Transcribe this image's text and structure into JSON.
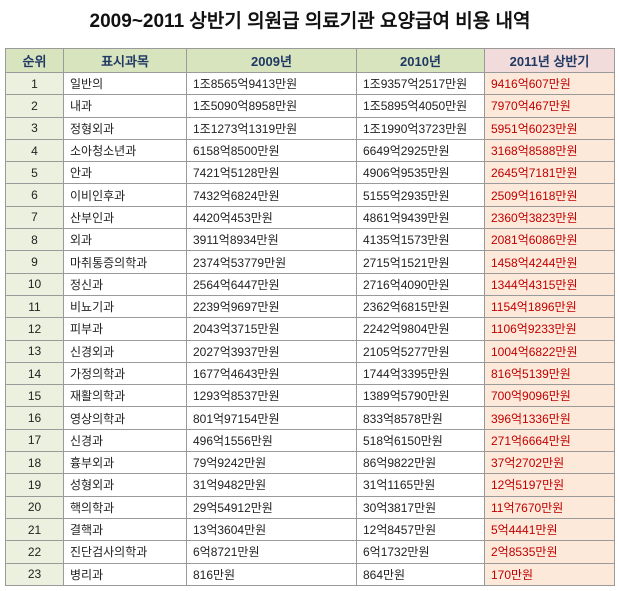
{
  "title": "2009~2011 상반기 의원급 의료기관 요양급여 비용 내역",
  "table": {
    "headers": [
      "순위",
      "표시과목",
      "2009년",
      "2010년",
      "2011년 상반기"
    ],
    "rows": [
      [
        "1",
        "일반의",
        "1조8565억9413만원",
        "1조9357억2517만원",
        "9416억607만원"
      ],
      [
        "2",
        "내과",
        "1조5090억8958만원",
        "1조5895억4050만원",
        "7970억467만원"
      ],
      [
        "3",
        "정형외과",
        "1조1273억1319만원",
        "1조1990억3723만원",
        "5951억6023만원"
      ],
      [
        "4",
        "소아청소년과",
        "6158억8500만원",
        "6649억2925만원",
        "3168억8588만원"
      ],
      [
        "5",
        "안과",
        "7421억5128만원",
        "4906억9535만원",
        "2645억7181만원"
      ],
      [
        "6",
        "이비인후과",
        "7432억6824만원",
        "5155억2935만원",
        "2509억1618만원"
      ],
      [
        "7",
        "산부인과",
        "4420억453만원",
        "4861억9439만원",
        "2360억3823만원"
      ],
      [
        "8",
        "외과",
        "3911억8934만원",
        "4135억1573만원",
        "2081억6086만원"
      ],
      [
        "9",
        "마취통증의학과",
        "2374억53779만원",
        "2715억1521만원",
        "1458억4244만원"
      ],
      [
        "10",
        "정신과",
        "2564억6447만원",
        "2716억4090만원",
        "1344억4315만원"
      ],
      [
        "11",
        "비뇨기과",
        "2239억9697만원",
        "2362억6815만원",
        "1154억1896만원"
      ],
      [
        "12",
        "피부과",
        "2043억3715만원",
        "2242억9804만원",
        "1106억9233만원"
      ],
      [
        "13",
        "신경외과",
        "2027억3937만원",
        "2105억5277만원",
        "1004억6822만원"
      ],
      [
        "14",
        "가정의학과",
        "1677억4643만원",
        "1744억3395만원",
        "816억5139만원"
      ],
      [
        "15",
        "재활의학과",
        "1293억8537만원",
        "1389억5790만원",
        "700억9096만원"
      ],
      [
        "16",
        "영상의학과",
        "801억97154만원",
        "833억8578만원",
        "396억1336만원"
      ],
      [
        "17",
        "신경과",
        "496억1556만원",
        "518억6150만원",
        "271억6664만원"
      ],
      [
        "18",
        "흉부외과",
        "79억9242만원",
        "86억9822만원",
        "37억2702만원"
      ],
      [
        "19",
        "성형외과",
        "31억9482만원",
        "31억1165만원",
        "12억5197만원"
      ],
      [
        "20",
        "핵의학과",
        "29억54912만원",
        "30억3817만원",
        "11억7670만원"
      ],
      [
        "21",
        "결핵과",
        "13억3604만원",
        "12억8457만원",
        "5억4441만원"
      ],
      [
        "22",
        "진단검사의학과",
        "6억8721만원",
        "6억1732만원",
        "2억8535만원"
      ],
      [
        "23",
        "병리과",
        "816만원",
        "864만원",
        "170만원"
      ]
    ]
  }
}
